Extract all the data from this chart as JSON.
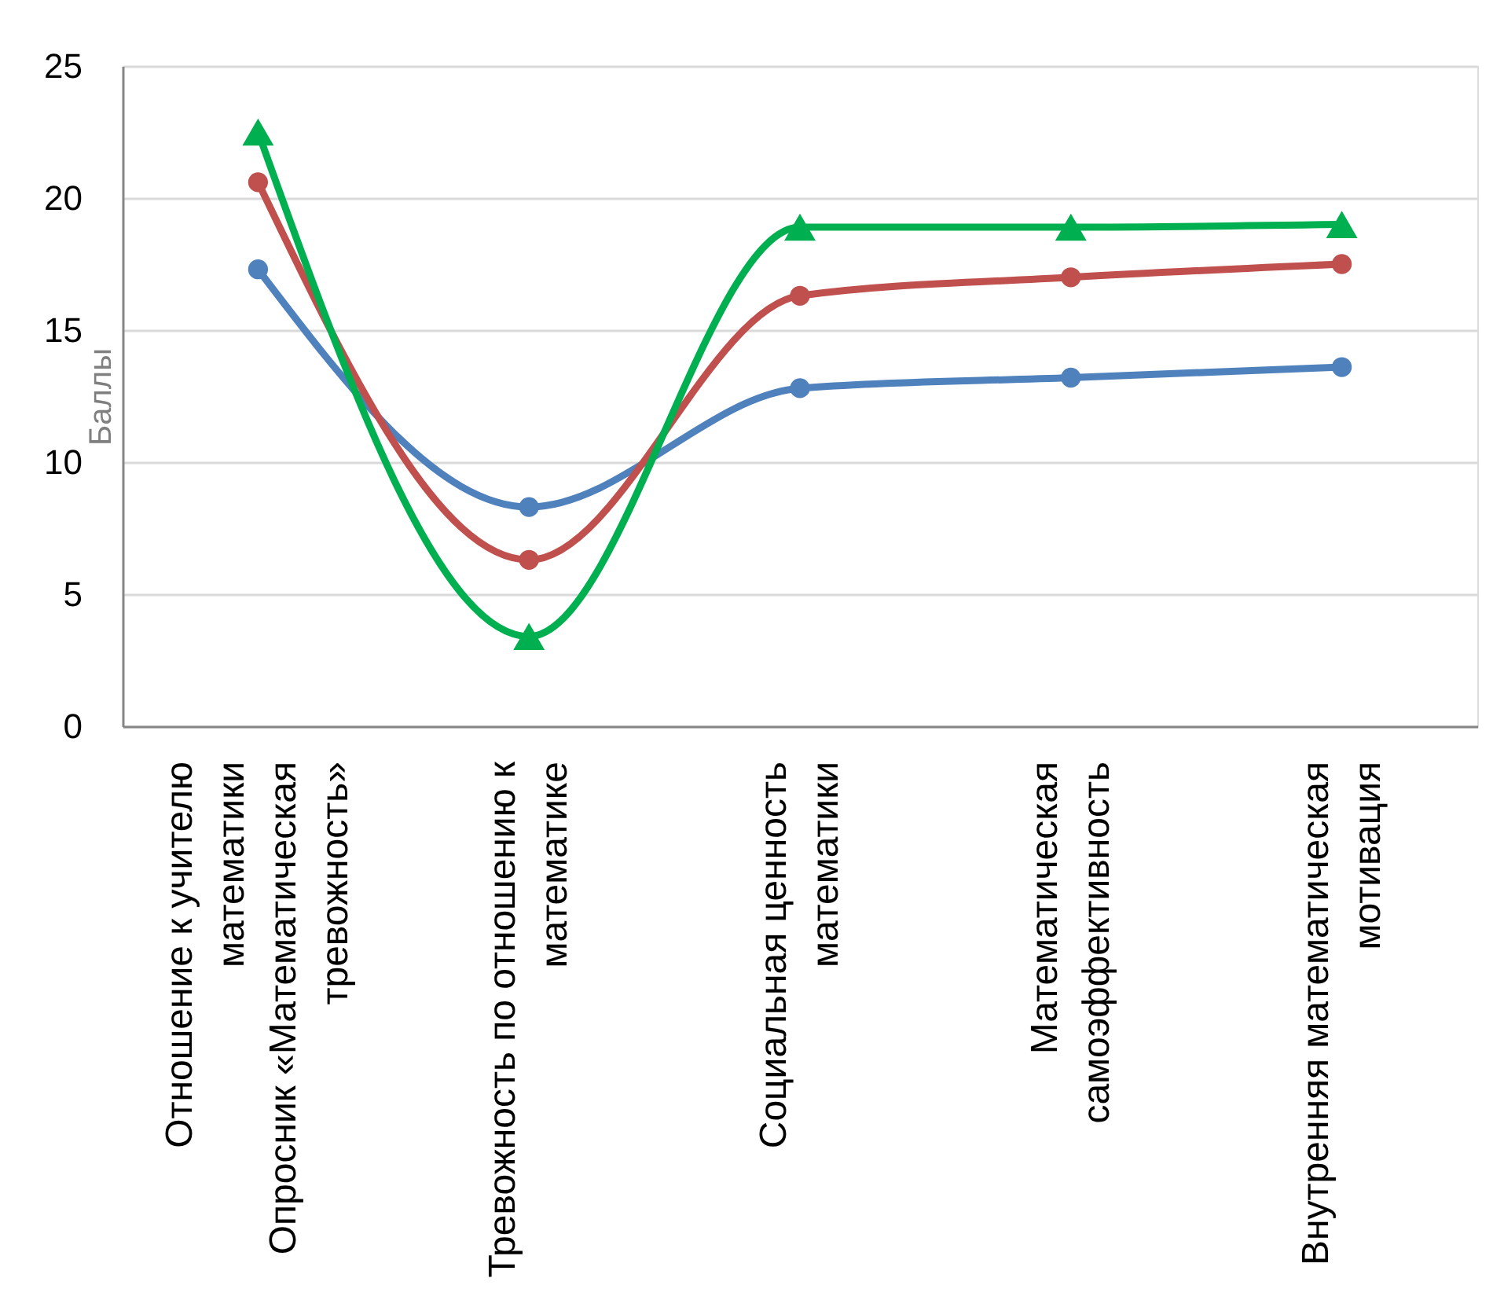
{
  "chart_data": {
    "type": "line",
    "ylabel": "Баллы",
    "categories": [
      "Отношение к учителю математики\nОпросник «Математическая тревожность»",
      "Тревожность по отношению к математике",
      "Социальная ценность математики",
      "Математическая самоэффективность",
      "Внутренняя математическая мотивация"
    ],
    "series": [
      {
        "color": "#4f81bd",
        "marker": "circle",
        "values": [
          17.3,
          8.3,
          12.8,
          13.2,
          13.6
        ]
      },
      {
        "color": "#c0504d",
        "marker": "circle",
        "values": [
          20.6,
          6.3,
          16.3,
          17.0,
          17.5
        ]
      },
      {
        "color": "#00b050",
        "marker": "triangle",
        "values": [
          22.5,
          3.4,
          18.9,
          18.9,
          19.0
        ]
      }
    ],
    "ylim": [
      0,
      25
    ],
    "yticks": [
      0,
      5,
      10,
      15,
      20,
      25
    ],
    "grid": "y",
    "line_style": "solid"
  }
}
